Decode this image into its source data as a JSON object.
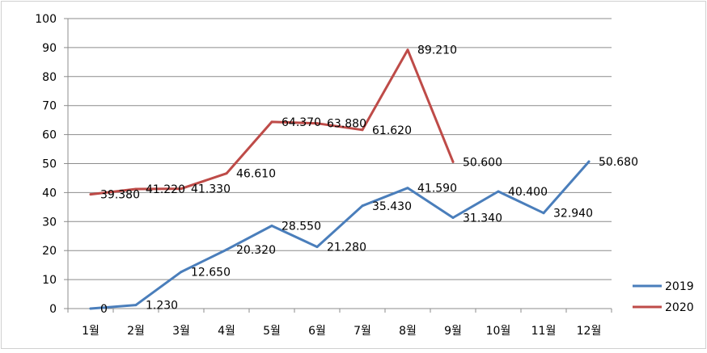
{
  "chart_data": {
    "type": "line",
    "categories": [
      "1월",
      "2월",
      "3월",
      "4월",
      "5월",
      "6월",
      "7월",
      "8월",
      "9월",
      "10월",
      "11월",
      "12월"
    ],
    "ylim": [
      0,
      100
    ],
    "yticks": [
      "0",
      "10",
      "20",
      "30",
      "40",
      "50",
      "60",
      "70",
      "80",
      "90",
      "100"
    ],
    "grid": true,
    "legend_position": "right",
    "series": [
      {
        "name": "2019",
        "color": "#4a7ebb",
        "values": [
          0,
          1.23,
          12.65,
          20.32,
          28.55,
          21.28,
          35.43,
          41.59,
          31.34,
          40.4,
          32.94,
          50.68
        ],
        "labels": [
          "0",
          "1.230",
          "12.650",
          "20.320",
          "28.550",
          "21.280",
          "35.430",
          "41.590",
          "31.340",
          "40.400",
          "32.940",
          "50.680"
        ]
      },
      {
        "name": "2020",
        "color": "#be4b48",
        "values": [
          39.38,
          41.22,
          41.33,
          46.61,
          64.37,
          63.88,
          61.62,
          89.21,
          50.6,
          null,
          null,
          null
        ],
        "labels": [
          "39.380",
          "41.220",
          "41.330",
          "46.610",
          "64.370",
          "63.880",
          "61.620",
          "89.210",
          "50.600",
          "",
          "",
          ""
        ]
      }
    ]
  }
}
